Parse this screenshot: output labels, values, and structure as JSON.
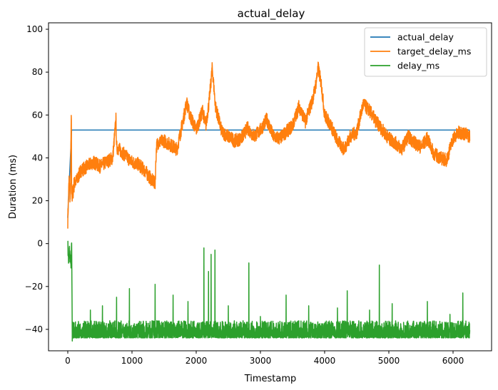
{
  "chart_data": {
    "type": "line",
    "title": "actual_delay",
    "xlabel": "Timestamp",
    "ylabel": "Duration (ms)",
    "xlim": [
      -300,
      6600
    ],
    "ylim": [
      -50,
      103
    ],
    "xticks": [
      0,
      1000,
      2000,
      3000,
      4000,
      5000,
      6000
    ],
    "yticks": [
      -40,
      -20,
      0,
      20,
      40,
      60,
      80,
      100
    ],
    "legend_position": "top-right",
    "series": [
      {
        "name": "actual_delay",
        "color": "#1f77b4",
        "x": [
          0,
          10,
          60,
          70,
          6260
        ],
        "values": [
          12,
          20,
          53,
          53,
          53
        ]
      },
      {
        "name": "target_delay_ms",
        "color": "#ff7f0e",
        "x": [
          0,
          20,
          40,
          55,
          60,
          70,
          100,
          150,
          200,
          300,
          400,
          500,
          600,
          700,
          750,
          760,
          800,
          900,
          1000,
          1100,
          1200,
          1300,
          1360,
          1380,
          1400,
          1500,
          1600,
          1700,
          1800,
          1850,
          1900,
          2000,
          2100,
          2150,
          2200,
          2250,
          2300,
          2350,
          2400,
          2500,
          2600,
          2700,
          2800,
          2900,
          3000,
          3100,
          3200,
          3300,
          3400,
          3500,
          3600,
          3700,
          3800,
          3850,
          3900,
          3950,
          4000,
          4100,
          4200,
          4300,
          4400,
          4500,
          4600,
          4700,
          4800,
          4900,
          5000,
          5100,
          5200,
          5300,
          5400,
          5500,
          5600,
          5700,
          5800,
          5900,
          6000,
          6100,
          6200,
          6260
        ],
        "values": [
          11,
          30,
          20,
          62,
          25,
          22,
          28,
          30,
          34,
          36,
          38,
          36,
          38,
          40,
          58,
          45,
          44,
          41,
          38,
          37,
          34,
          30,
          28,
          45,
          47,
          48,
          46,
          44,
          58,
          66,
          60,
          53,
          62,
          55,
          66,
          82,
          64,
          58,
          52,
          50,
          48,
          49,
          54,
          50,
          53,
          58,
          50,
          49,
          52,
          55,
          64,
          57,
          66,
          72,
          82,
          74,
          60,
          55,
          48,
          44,
          50,
          52,
          65,
          62,
          57,
          53,
          49,
          47,
          44,
          50,
          47,
          45,
          49,
          42,
          40,
          39,
          49,
          52,
          51,
          50
        ]
      },
      {
        "name": "delay_ms",
        "color": "#2ca02c",
        "x": [
          0,
          10,
          30,
          50,
          60,
          70,
          6260
        ],
        "values": [
          1,
          -8,
          -3,
          -10,
          0,
          -43,
          -41
        ],
        "noise_min": -44,
        "noise_max": -36,
        "spikes": [
          {
            "x": 350,
            "value": -31
          },
          {
            "x": 540,
            "value": -29
          },
          {
            "x": 760,
            "value": -25
          },
          {
            "x": 960,
            "value": -21
          },
          {
            "x": 1360,
            "value": -19
          },
          {
            "x": 1640,
            "value": -24
          },
          {
            "x": 1870,
            "value": -27
          },
          {
            "x": 2120,
            "value": -2
          },
          {
            "x": 2190,
            "value": -13
          },
          {
            "x": 2230,
            "value": -5
          },
          {
            "x": 2290,
            "value": -3
          },
          {
            "x": 2500,
            "value": -29
          },
          {
            "x": 2820,
            "value": -9
          },
          {
            "x": 3000,
            "value": -34
          },
          {
            "x": 3400,
            "value": -24
          },
          {
            "x": 3750,
            "value": -29
          },
          {
            "x": 4200,
            "value": -30
          },
          {
            "x": 4350,
            "value": -22
          },
          {
            "x": 4700,
            "value": -31
          },
          {
            "x": 4850,
            "value": -10
          },
          {
            "x": 5050,
            "value": -28
          },
          {
            "x": 5600,
            "value": -27
          },
          {
            "x": 5950,
            "value": -33
          },
          {
            "x": 6150,
            "value": -23
          }
        ]
      }
    ]
  }
}
